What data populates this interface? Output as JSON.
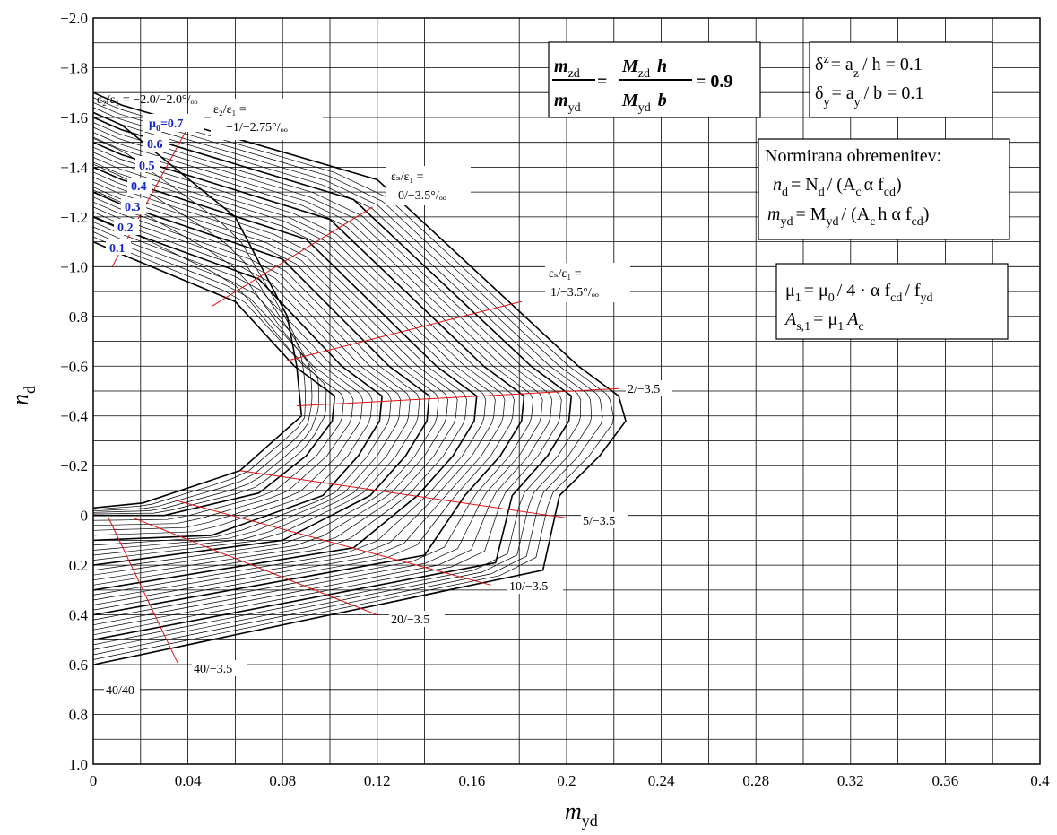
{
  "chart_data": {
    "type": "line",
    "title": "",
    "xlabel": "m",
    "xlabel_sub": "yd",
    "ylabel": "n",
    "ylabel_sub": "d",
    "xlim": [
      0,
      0.4
    ],
    "ylim": [
      1.0,
      -2.0
    ],
    "y_inverted": true,
    "grid": true,
    "x_ticks": [
      "0",
      "0.04",
      "0.08",
      "0.12",
      "0.16",
      "0.2",
      "0.24",
      "0.28",
      "0.32",
      "0.36",
      "0.4"
    ],
    "y_ticks": [
      "−2.0",
      "−1.8",
      "−1.6",
      "−1.4",
      "−1.2",
      "−1.0",
      "−0.8",
      "−0.6",
      "−0.4",
      "−0.2",
      "0",
      "0.2",
      "0.4",
      "0.6",
      "0.8",
      "1.0"
    ],
    "mu0_labels": [
      "μ",
      "0",
      "=0.7",
      "0.6",
      "0.5",
      "0.4",
      "0.3",
      "0.2",
      "0.1"
    ],
    "series": [
      {
        "mu0": 0.0,
        "points": [
          [
            0,
            -1.62
          ],
          [
            0.012,
            -1.57
          ],
          [
            0.06,
            -1.2
          ],
          [
            0.082,
            -0.8
          ],
          [
            0.086,
            -0.6
          ],
          [
            0.088,
            -0.4
          ],
          [
            0.062,
            -0.18
          ],
          [
            0.021,
            -0.05
          ],
          [
            0,
            -0.03
          ]
        ]
      },
      {
        "mu0": 0.1,
        "points": [
          [
            0,
            -1.1
          ],
          [
            0.012,
            -1.05
          ],
          [
            0.06,
            -0.86
          ],
          [
            0.085,
            -0.6
          ],
          [
            0.102,
            -0.48
          ],
          [
            0.101,
            -0.38
          ],
          [
            0.09,
            -0.24
          ],
          [
            0.07,
            -0.09
          ],
          [
            0.03,
            0.0
          ],
          [
            0,
            0.0
          ]
        ]
      },
      {
        "mu0": 0.2,
        "points": [
          [
            0,
            -1.2
          ],
          [
            0.012,
            -1.15
          ],
          [
            0.07,
            -0.95
          ],
          [
            0.105,
            -0.6
          ],
          [
            0.122,
            -0.48
          ],
          [
            0.121,
            -0.38
          ],
          [
            0.112,
            -0.24
          ],
          [
            0.097,
            -0.08
          ],
          [
            0.05,
            0.08
          ],
          [
            0,
            0.1
          ]
        ]
      },
      {
        "mu0": 0.3,
        "points": [
          [
            0,
            -1.3
          ],
          [
            0.012,
            -1.25
          ],
          [
            0.08,
            -1.03
          ],
          [
            0.125,
            -0.6
          ],
          [
            0.142,
            -0.48
          ],
          [
            0.141,
            -0.38
          ],
          [
            0.132,
            -0.24
          ],
          [
            0.117,
            -0.08
          ],
          [
            0.08,
            0.1
          ],
          [
            0,
            0.2
          ]
        ]
      },
      {
        "mu0": 0.4,
        "points": [
          [
            0,
            -1.4
          ],
          [
            0.012,
            -1.35
          ],
          [
            0.09,
            -1.11
          ],
          [
            0.145,
            -0.6
          ],
          [
            0.162,
            -0.48
          ],
          [
            0.161,
            -0.38
          ],
          [
            0.152,
            -0.24
          ],
          [
            0.137,
            -0.08
          ],
          [
            0.11,
            0.13
          ],
          [
            0,
            0.3
          ]
        ]
      },
      {
        "mu0": 0.5,
        "points": [
          [
            0,
            -1.5
          ],
          [
            0.012,
            -1.45
          ],
          [
            0.1,
            -1.19
          ],
          [
            0.165,
            -0.6
          ],
          [
            0.182,
            -0.48
          ],
          [
            0.181,
            -0.38
          ],
          [
            0.172,
            -0.24
          ],
          [
            0.157,
            -0.08
          ],
          [
            0.14,
            0.16
          ],
          [
            0,
            0.4
          ]
        ]
      },
      {
        "mu0": 0.6,
        "points": [
          [
            0,
            -1.6
          ],
          [
            0.012,
            -1.55
          ],
          [
            0.11,
            -1.27
          ],
          [
            0.185,
            -0.6
          ],
          [
            0.202,
            -0.48
          ],
          [
            0.201,
            -0.38
          ],
          [
            0.192,
            -0.24
          ],
          [
            0.177,
            -0.08
          ],
          [
            0.17,
            0.19
          ],
          [
            0,
            0.5
          ]
        ]
      },
      {
        "mu0": 0.7,
        "points": [
          [
            0,
            -1.7
          ],
          [
            0.012,
            -1.65
          ],
          [
            0.12,
            -1.35
          ],
          [
            0.205,
            -0.6
          ],
          [
            0.222,
            -0.48
          ],
          [
            0.225,
            -0.38
          ],
          [
            0.214,
            -0.24
          ],
          [
            0.197,
            -0.08
          ],
          [
            0.19,
            0.22
          ],
          [
            0,
            0.6
          ]
        ]
      }
    ]
  },
  "region_labels": {
    "top_left": "ε₂/ε₁ = −2.0/−2.0°/ₒₒ",
    "e2_a": "ε₂/ε₁ =",
    "e2_b": "−1/−2.75°/ₒₒ",
    "es0_a": "εₛ/ε₁ =",
    "es0_b": "0/−3.5°/ₒₒ",
    "es1_a": "εₛ/ε₁ =",
    "es1_b": "1/−3.5°/ₒₒ",
    "l2": "2/−3.5",
    "l5": "5/−3.5",
    "l10": "10/−3.5",
    "l20": "20/−3.5",
    "l40": "40/−3.5",
    "l4040": "40/40"
  },
  "box_ratio": {
    "m1": "m",
    "m1_sub": "zd",
    "m2": "m",
    "m2_sub": "yd",
    "eq": "=",
    "M1": "M",
    "M1_sub": "zd",
    "h": "h",
    "M2": "M",
    "M2_sub": "yd",
    "b": "b",
    "value": "= 0.9"
  },
  "box_delta": {
    "line1": "δ",
    "line1_sub": "z",
    "line1_rest": "= a",
    "line1_sub2": "z",
    "line1_end": "/ h = 0.1",
    "line2": "δ",
    "line2_sub": "y",
    "line2_rest": "= a",
    "line2_sub2": "y",
    "line2_end": "/ b = 0.1"
  },
  "box_norm": {
    "title": "Normirana obremenitev:",
    "l1": "n",
    "l1_sub": "d",
    "l1_rest": "= N",
    "l1_sub2": "d",
    "l1_mid": "/ (A",
    "l1_sub3": "c",
    "l1_end": "α f",
    "l1_sub4": "cd",
    "l1_close": ")",
    "l2": "m",
    "l2_sub": "yd",
    "l2_rest": "= M",
    "l2_sub2": "yd",
    "l2_mid": "/ (A",
    "l2_sub3": "c",
    "l2_end": "h α f",
    "l2_sub4": "cd",
    "l2_close": ")"
  },
  "box_mu": {
    "l1": "μ",
    "l1_sub": "1",
    "l1_rest": "= μ",
    "l1_sub2": "0",
    "l1_mid": "/ 4 · α f",
    "l1_sub3": "cd",
    "l1_end": "/ f",
    "l1_sub4": "yd",
    "l2": "A",
    "l2_sub": "s,1",
    "l2_rest": "= μ",
    "l2_sub2": "1",
    "l2_end": "A",
    "l2_sub3": "c"
  }
}
